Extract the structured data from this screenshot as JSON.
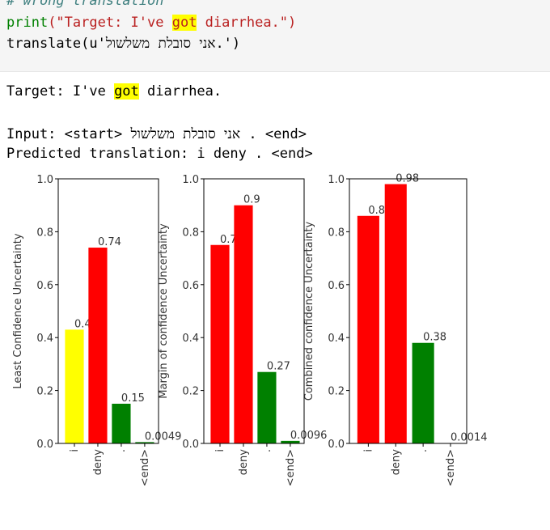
{
  "code": {
    "comment": "# wrong translation",
    "print_fn": "print",
    "print_open": "(\"Target: I've ",
    "print_hl": "got",
    "print_close": " diarrhea.\")",
    "translate_fn": "translate",
    "translate_arg": "(u'אני סובלת משלשול.')"
  },
  "output": {
    "target_pre": "Target: I've ",
    "target_hl": "got",
    "target_post": " diarrhea.",
    "input_line": "Input: <start> אני סובלת משלשול . <end>",
    "predicted_line": "Predicted translation: i deny . <end>"
  },
  "chart_data": [
    {
      "type": "bar",
      "ylabel": "Least Confidence Uncertainty",
      "categories": [
        "i",
        "deny",
        ".",
        "<end>"
      ],
      "values": [
        0.43,
        0.74,
        0.15,
        0.0049
      ],
      "data_labels": [
        "0.43",
        "0.74",
        "0.15",
        "0.0049"
      ],
      "colors": [
        "#ffff00",
        "#ff0000",
        "#008000",
        "#008000"
      ],
      "ylim": [
        0,
        1
      ],
      "yticks": [
        "0.0",
        "0.2",
        "0.4",
        "0.6",
        "0.8",
        "1.0"
      ]
    },
    {
      "type": "bar",
      "ylabel": "Margin of confidence Uncertainty",
      "categories": [
        "i",
        "deny",
        ".",
        "<end>"
      ],
      "values": [
        0.75,
        0.9,
        0.27,
        0.0096
      ],
      "data_labels": [
        "0.75",
        "0.9",
        "0.27",
        "0.0096"
      ],
      "colors": [
        "#ff0000",
        "#ff0000",
        "#008000",
        "#008000"
      ],
      "ylim": [
        0,
        1
      ],
      "yticks": [
        "0.0",
        "0.2",
        "0.4",
        "0.6",
        "0.8",
        "1.0"
      ]
    },
    {
      "type": "bar",
      "ylabel": "Combined confidence Uncertainty",
      "categories": [
        "i",
        "deny",
        ".",
        "<end>"
      ],
      "values": [
        0.86,
        0.98,
        0.38,
        0.0014
      ],
      "data_labels": [
        "0.86",
        "0.98",
        "0.38",
        "0.0014"
      ],
      "colors": [
        "#ff0000",
        "#ff0000",
        "#008000",
        "#008000"
      ],
      "ylim": [
        0,
        1
      ],
      "yticks": [
        "0.0",
        "0.2",
        "0.4",
        "0.6",
        "0.8",
        "1.0"
      ]
    }
  ]
}
